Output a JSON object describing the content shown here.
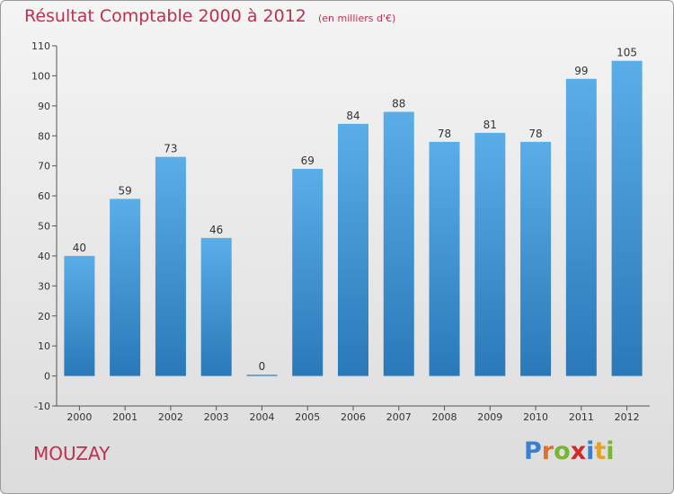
{
  "header": {
    "title": "Résultat Comptable 2000 à 2012",
    "subtitle": "(en milliers d'€)"
  },
  "commune": "MOUZAY",
  "brand": {
    "letters": [
      "P",
      "r",
      "o",
      "x",
      "i",
      "t",
      "i"
    ],
    "colors": [
      "#3b7fd0",
      "#e2702a",
      "#79b530",
      "#d22a2a",
      "#3b7fd0",
      "#e2a12a",
      "#79b530"
    ]
  },
  "colors": {
    "bar_top": "#5aaee8",
    "bar_bottom": "#2a78b8",
    "axis": "#555555",
    "text": "#333333"
  },
  "chart_data": {
    "type": "bar",
    "categories": [
      "2000",
      "2001",
      "2002",
      "2003",
      "2004",
      "2005",
      "2006",
      "2007",
      "2008",
      "2009",
      "2010",
      "2011",
      "2012"
    ],
    "values": [
      40,
      59,
      73,
      46,
      0,
      69,
      84,
      88,
      78,
      81,
      78,
      99,
      105
    ],
    "ylim": [
      -10,
      110
    ],
    "yticks": [
      -10,
      0,
      10,
      20,
      30,
      40,
      50,
      60,
      70,
      80,
      90,
      100,
      110
    ],
    "grid": false,
    "legend": "none"
  }
}
